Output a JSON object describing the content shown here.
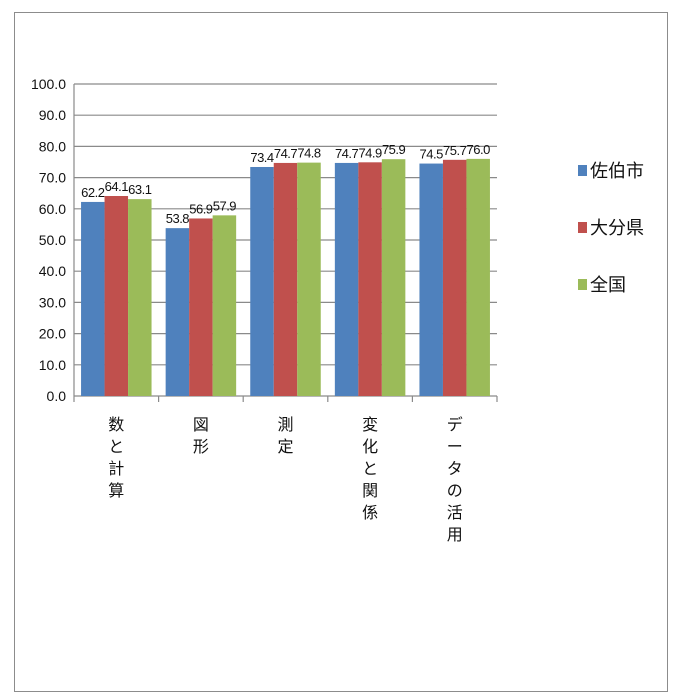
{
  "chart_data": {
    "type": "bar",
    "categories": [
      "数と計算",
      "図形",
      "測定",
      "変化と関係",
      "データの活用"
    ],
    "series": [
      {
        "name": "佐伯市",
        "color": "#4f81bd",
        "values": [
          62.2,
          53.8,
          73.4,
          74.7,
          74.5
        ]
      },
      {
        "name": "大分県",
        "color": "#c0504d",
        "values": [
          64.1,
          56.9,
          74.7,
          74.9,
          75.7
        ]
      },
      {
        "name": "全国",
        "color": "#9bbb59",
        "values": [
          63.1,
          57.9,
          74.8,
          75.9,
          76.0
        ]
      }
    ],
    "ylim": [
      0,
      100
    ],
    "yticks": [
      "0.0",
      "10.0",
      "20.0",
      "30.0",
      "40.0",
      "50.0",
      "60.0",
      "70.0",
      "80.0",
      "90.0",
      "100.0"
    ],
    "grid": true,
    "legend_position": "right"
  }
}
